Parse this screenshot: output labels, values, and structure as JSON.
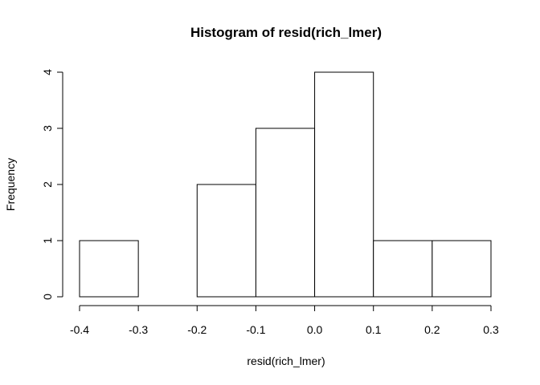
{
  "chart_data": {
    "type": "bar",
    "title": "Histogram of resid(rich_lmer)",
    "xlabel": "resid(rich_lmer)",
    "ylabel": "Frequency",
    "bins": [
      {
        "start": -0.4,
        "end": -0.3,
        "count": 1
      },
      {
        "start": -0.3,
        "end": -0.2,
        "count": 0
      },
      {
        "start": -0.2,
        "end": -0.1,
        "count": 2
      },
      {
        "start": -0.1,
        "end": 0.0,
        "count": 3
      },
      {
        "start": 0.0,
        "end": 0.1,
        "count": 4
      },
      {
        "start": 0.1,
        "end": 0.2,
        "count": 1
      },
      {
        "start": 0.2,
        "end": 0.3,
        "count": 1
      }
    ],
    "xlim": [
      -0.4,
      0.3
    ],
    "ylim": [
      0,
      4
    ],
    "x_ticks": [
      "-0.4",
      "-0.3",
      "-0.2",
      "-0.1",
      "0.0",
      "0.1",
      "0.2",
      "0.3"
    ],
    "y_ticks": [
      "0",
      "1",
      "2",
      "3",
      "4"
    ],
    "grid": false,
    "legend": "none",
    "bar_fill": "#ffffff",
    "bar_stroke": "#000000"
  }
}
